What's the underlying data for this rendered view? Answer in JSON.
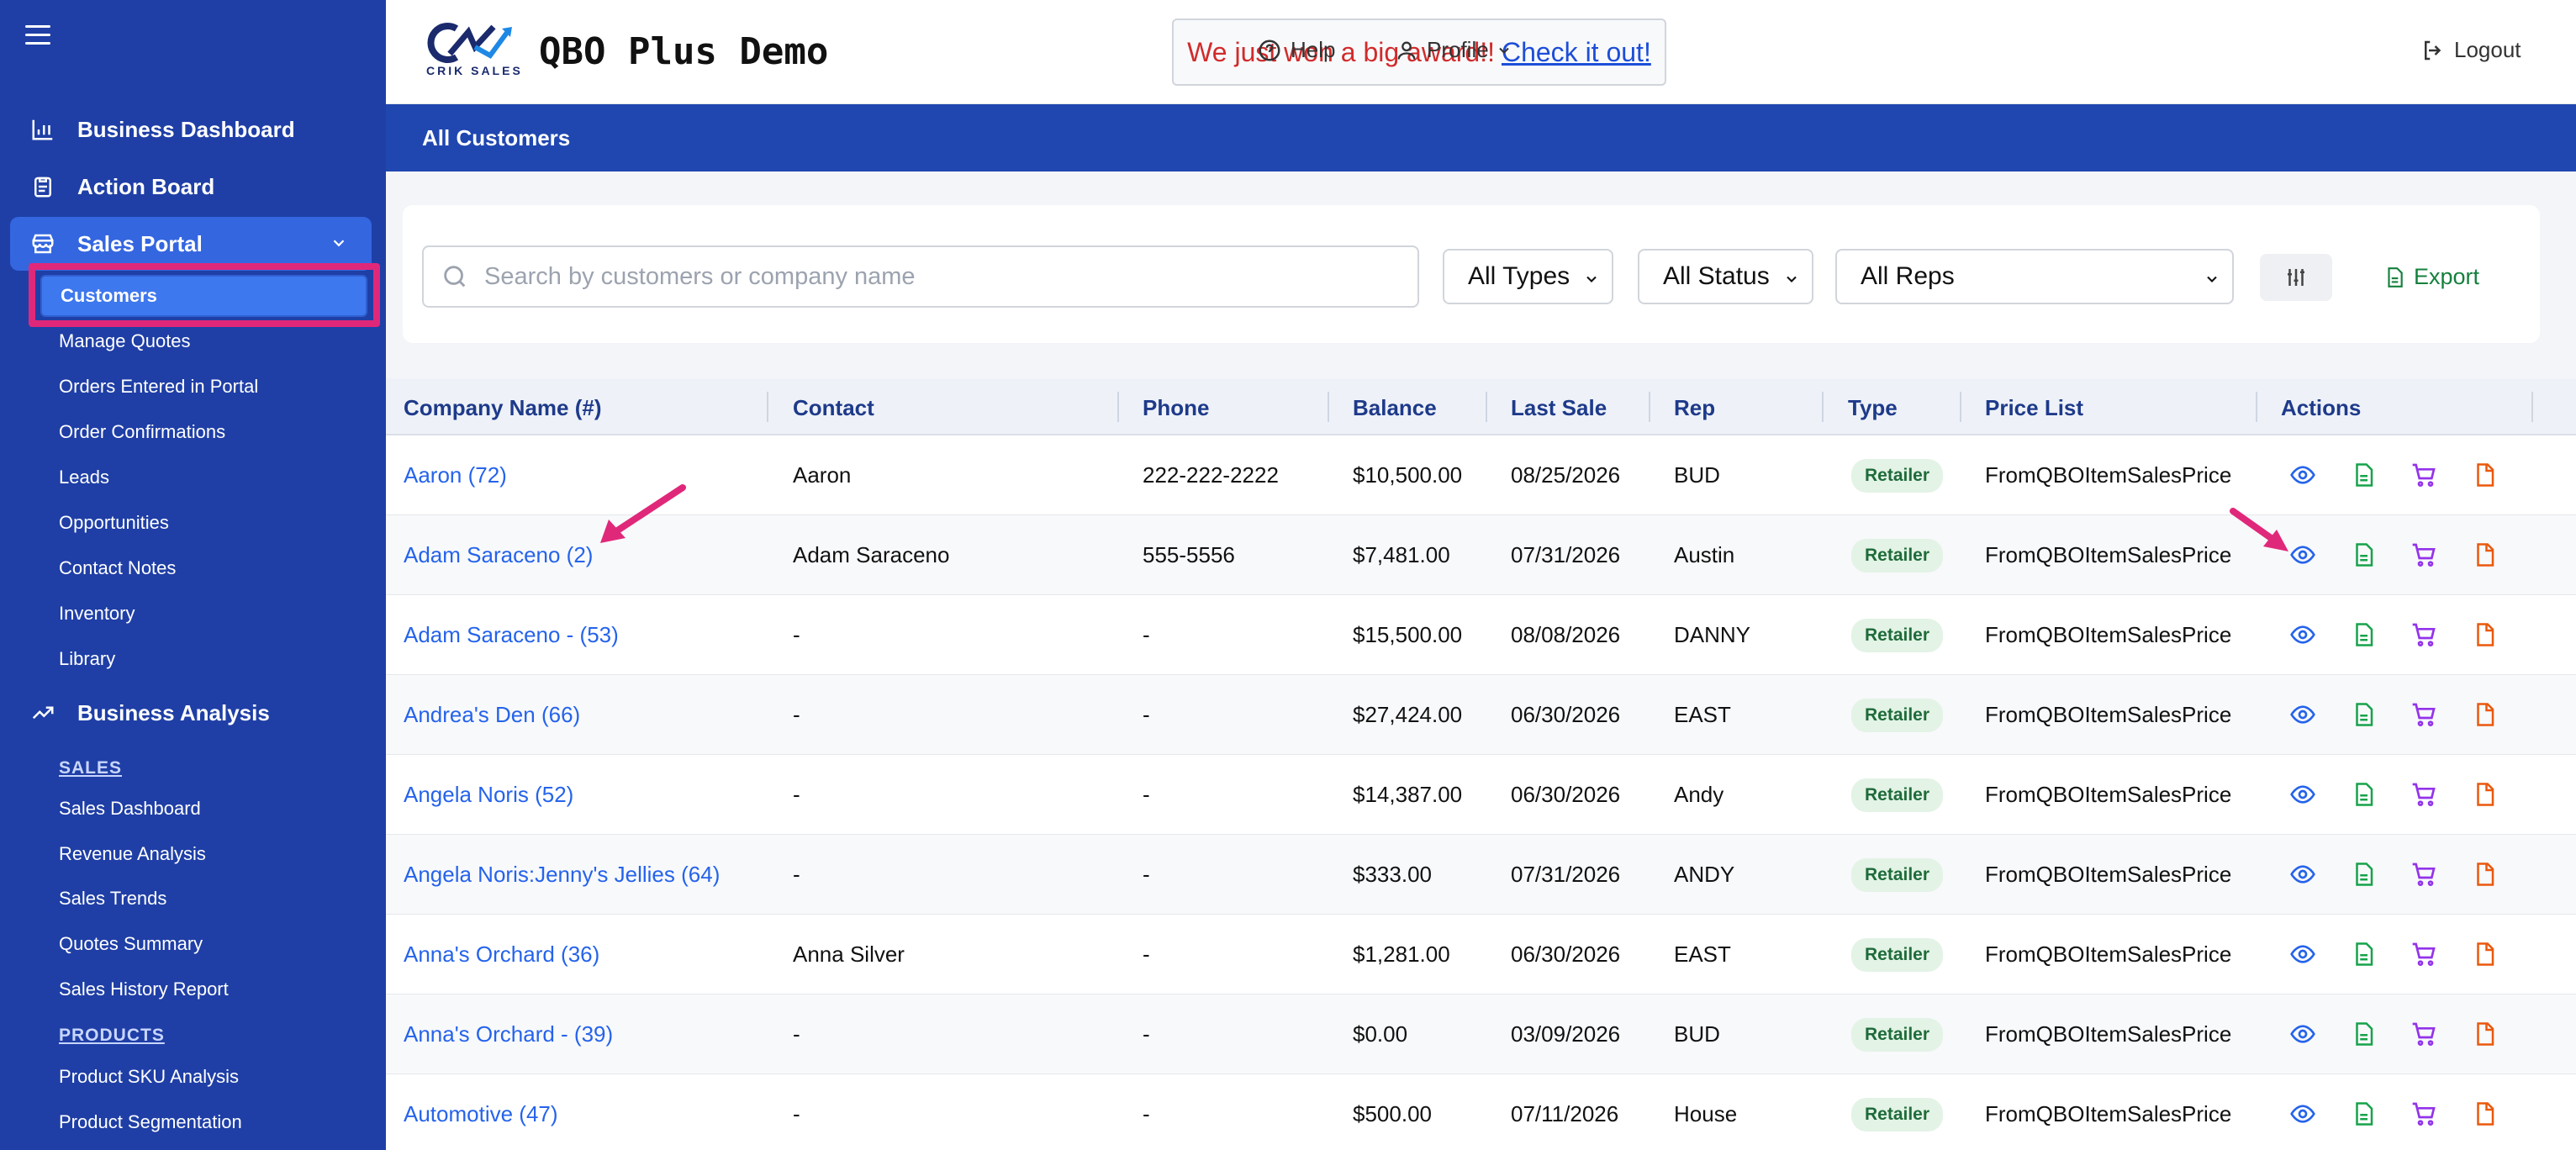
{
  "sidebar": {
    "main_items": [
      {
        "label": "Business Dashboard",
        "icon": "bar-chart-icon"
      },
      {
        "label": "Action Board",
        "icon": "clipboard-icon"
      },
      {
        "label": "Sales Portal",
        "icon": "store-icon"
      },
      {
        "label": "Business Analysis",
        "icon": "trending-up-icon"
      }
    ],
    "sales_portal_items": [
      "Customers",
      "Manage Quotes",
      "Orders Entered in Portal",
      "Order Confirmations",
      "Leads",
      "Opportunities",
      "Contact Notes",
      "Inventory",
      "Library"
    ],
    "sales_section_label": "SALES",
    "sales_items": [
      "Sales Dashboard",
      "Revenue Analysis",
      "Sales Trends",
      "Quotes Summary",
      "Sales History Report"
    ],
    "products_section_label": "PRODUCTS",
    "products_items": [
      "Product SKU Analysis",
      "Product Segmentation"
    ]
  },
  "topbar": {
    "logo_text": "CRIK SALES",
    "app_title": "QBO Plus Demo",
    "award_text": "We just won a big award!!",
    "award_link": "Check it out!",
    "help_label": "Help",
    "profile_label": "Profile",
    "logout_label": "Logout"
  },
  "header": {
    "title": "All Customers"
  },
  "filters": {
    "search_placeholder": "Search by customers or company name",
    "types_value": "All Types",
    "status_value": "All Status",
    "reps_value": "All Reps",
    "export_label": "Export"
  },
  "table": {
    "columns": [
      "Company Name (#)",
      "Contact",
      "Phone",
      "Balance",
      "Last Sale",
      "Rep",
      "Type",
      "Price List",
      "Actions"
    ],
    "rows": [
      {
        "company": "Aaron (72)",
        "contact": "Aaron",
        "phone": "222-222-2222",
        "balance": "$10,500.00",
        "last_sale": "08/25/2026",
        "rep": "BUD",
        "type": "Retailer",
        "price_list": "FromQBOItemSalesPrice"
      },
      {
        "company": "Adam Saraceno (2)",
        "contact": "Adam Saraceno",
        "phone": "555-5556",
        "balance": "$7,481.00",
        "last_sale": "07/31/2026",
        "rep": "Austin",
        "type": "Retailer",
        "price_list": "FromQBOItemSalesPrice"
      },
      {
        "company": "Adam Saraceno - (53)",
        "contact": "-",
        "phone": "-",
        "balance": "$15,500.00",
        "last_sale": "08/08/2026",
        "rep": "DANNY",
        "type": "Retailer",
        "price_list": "FromQBOItemSalesPrice"
      },
      {
        "company": "Andrea's Den (66)",
        "contact": "-",
        "phone": "-",
        "balance": "$27,424.00",
        "last_sale": "06/30/2026",
        "rep": "EAST",
        "type": "Retailer",
        "price_list": "FromQBOItemSalesPrice"
      },
      {
        "company": "Angela Noris (52)",
        "contact": "-",
        "phone": "-",
        "balance": "$14,387.00",
        "last_sale": "06/30/2026",
        "rep": "Andy",
        "type": "Retailer",
        "price_list": "FromQBOItemSalesPrice"
      },
      {
        "company": "Angela Noris:Jenny's Jellies (64)",
        "contact": "-",
        "phone": "-",
        "balance": "$333.00",
        "last_sale": "07/31/2026",
        "rep": "ANDY",
        "type": "Retailer",
        "price_list": "FromQBOItemSalesPrice"
      },
      {
        "company": "Anna's Orchard (36)",
        "contact": "Anna Silver",
        "phone": "-",
        "balance": "$1,281.00",
        "last_sale": "06/30/2026",
        "rep": "EAST",
        "type": "Retailer",
        "price_list": "FromQBOItemSalesPrice"
      },
      {
        "company": "Anna's Orchard - (39)",
        "contact": "-",
        "phone": "-",
        "balance": "$0.00",
        "last_sale": "03/09/2026",
        "rep": "BUD",
        "type": "Retailer",
        "price_list": "FromQBOItemSalesPrice"
      },
      {
        "company": "Automotive (47)",
        "contact": "-",
        "phone": "-",
        "balance": "$500.00",
        "last_sale": "07/11/2026",
        "rep": "House",
        "type": "Retailer",
        "price_list": "FromQBOItemSalesPrice"
      }
    ],
    "action_icons": [
      "eye-icon",
      "document-icon",
      "cart-icon",
      "file-icon"
    ]
  },
  "colors": {
    "sidebar": "#1f3fa6",
    "header": "#2047b0",
    "highlight": "#e0287a",
    "link": "#2563eb",
    "export": "#15803d"
  }
}
